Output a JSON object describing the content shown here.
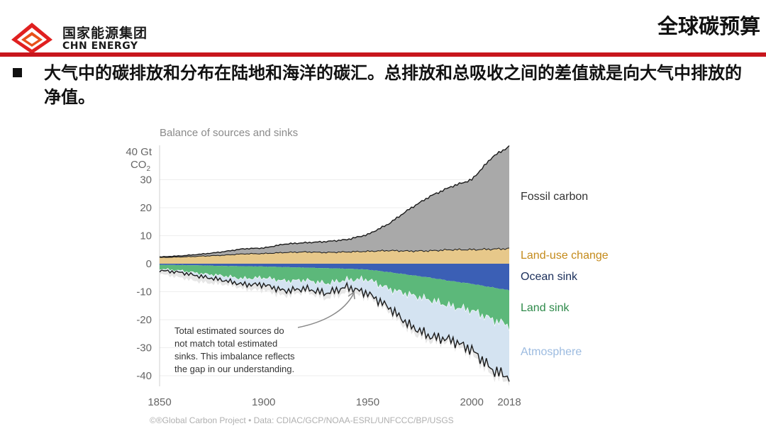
{
  "header": {
    "logo_cn": "国家能源集团",
    "logo_en": "CHN ENERGY",
    "page_title": "全球碳预算",
    "brand_color": "#c8161d"
  },
  "subtitle": "大气中的碳排放和分布在陆地和海洋的碳汇。总排放和总吸收之间的差值就是向大气中排放的净值。",
  "chart_data": {
    "type": "area",
    "title": "Balance of sources and sinks",
    "ylabel_line1": "40 Gt",
    "ylabel_line2": "CO",
    "ylabel_sub": "2",
    "ylim": [
      -42,
      42
    ],
    "xlim": [
      1850,
      2018
    ],
    "x_ticks": [
      "1850",
      "1900",
      "1950",
      "2000",
      "2018"
    ],
    "y_ticks": [
      "30",
      "20",
      "10",
      "0",
      "-10",
      "-20",
      "-30",
      "-40"
    ],
    "annotation": [
      "Total estimated sources do",
      "not match total estimated",
      "sinks. This imbalance reflects",
      "the gap in our understanding."
    ],
    "source": "©®Global Carbon Project  •  Data: CDIAC/GCP/NOAA-ESRL/UNFCCC/BP/USGS",
    "x": [
      1850,
      1860,
      1870,
      1880,
      1890,
      1900,
      1910,
      1920,
      1930,
      1940,
      1950,
      1960,
      1970,
      1980,
      1990,
      2000,
      2010,
      2018
    ],
    "series": [
      {
        "name": "Fossil carbon",
        "color": "#a9a9a9",
        "label_color": "#333333",
        "values": [
          0.2,
          0.4,
          0.7,
          1.2,
          1.8,
          2.0,
          3.0,
          3.3,
          3.9,
          4.4,
          6.0,
          9.5,
          15.0,
          19.5,
          22.5,
          25.0,
          33.0,
          36.5
        ]
      },
      {
        "name": "Land-use change",
        "color": "#e7c88a",
        "label_color": "#c48a1a",
        "values": [
          2.2,
          2.4,
          2.7,
          3.0,
          3.5,
          3.6,
          4.0,
          4.2,
          4.0,
          4.2,
          4.4,
          4.7,
          4.5,
          4.6,
          5.0,
          5.0,
          5.2,
          5.4
        ]
      },
      {
        "name": "Ocean sink",
        "color": "#3b5fb5",
        "label_color": "#1a2e5a",
        "values": [
          -0.4,
          -0.5,
          -0.6,
          -0.8,
          -0.9,
          -1.0,
          -1.2,
          -1.4,
          -1.6,
          -1.8,
          -2.1,
          -3.0,
          -4.0,
          -5.0,
          -6.2,
          -7.2,
          -8.5,
          -9.5
        ]
      },
      {
        "name": "Land sink",
        "color": "#5cb87a",
        "label_color": "#2e8a4a",
        "values": [
          -1.5,
          -2.0,
          -3.0,
          -3.5,
          -4.5,
          -4.0,
          -5.0,
          -4.5,
          -5.5,
          -4.0,
          -3.5,
          -6.0,
          -7.0,
          -8.0,
          -9.0,
          -9.5,
          -11.5,
          -12.5
        ]
      },
      {
        "name": "Atmosphere",
        "color": "#d4e3f1",
        "label_color": "#9cbbe0",
        "values": [
          -0.5,
          -0.6,
          -1.0,
          -1.5,
          -2.0,
          -2.5,
          -3.5,
          -3.0,
          -3.5,
          -2.5,
          -5.0,
          -6.5,
          -11.0,
          -13.0,
          -12.0,
          -14.0,
          -18.0,
          -18.5
        ]
      }
    ],
    "imbalance_color": "#e6e6e6"
  }
}
